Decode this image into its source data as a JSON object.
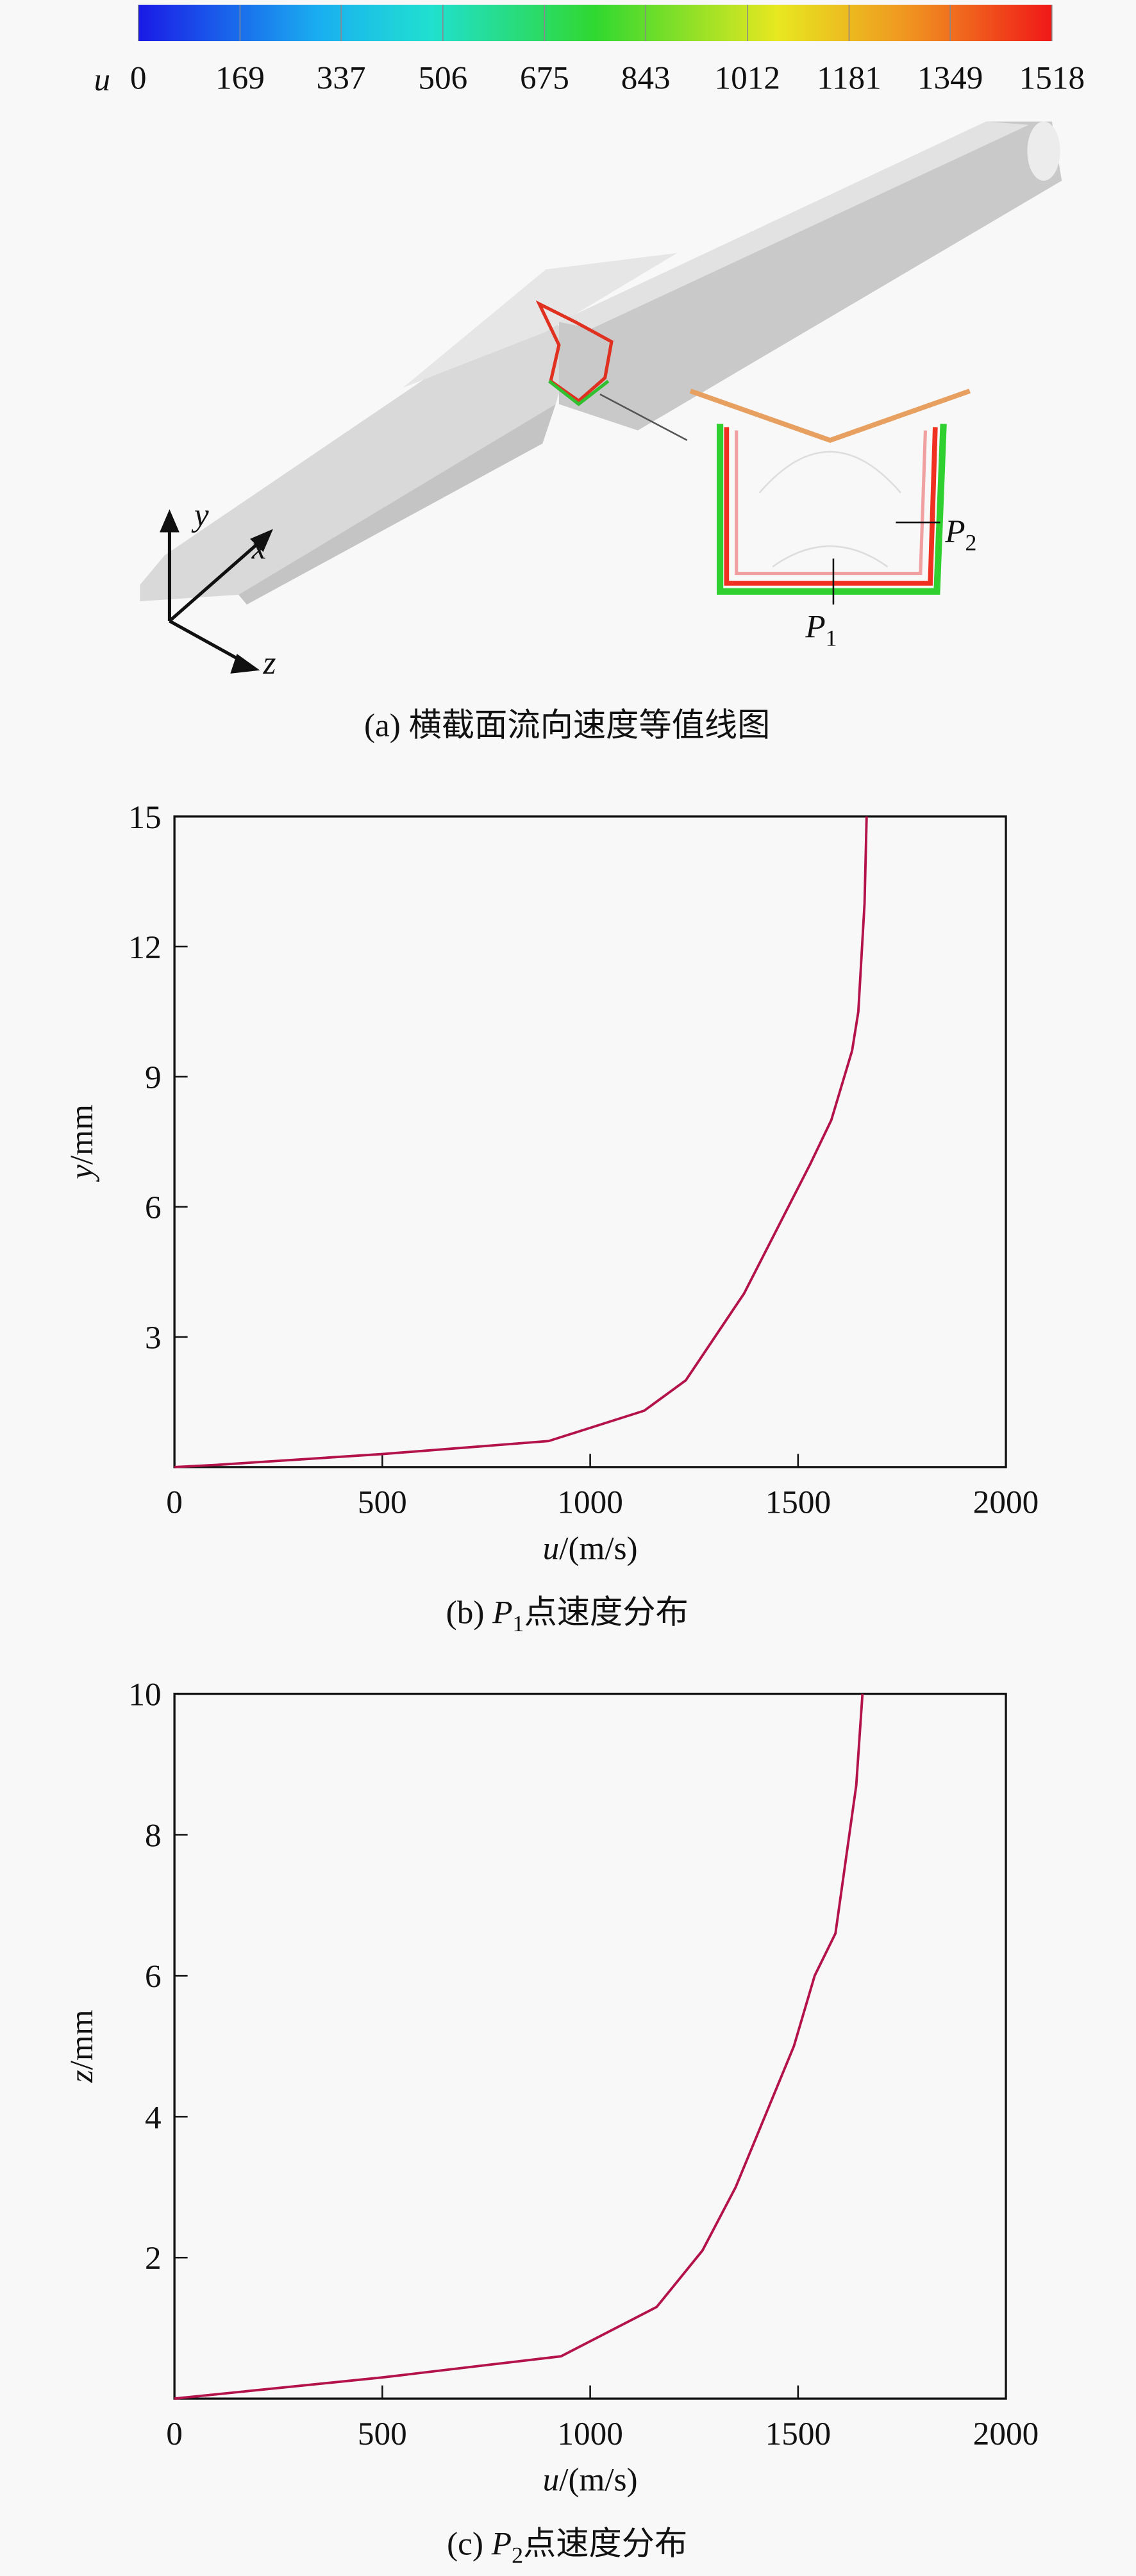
{
  "figure_a": {
    "colorbar": {
      "label": "u",
      "lim": [
        0,
        1518
      ],
      "ticks": [
        0,
        169,
        337,
        506,
        675,
        843,
        1012,
        1181,
        1349,
        1518
      ]
    },
    "axis_labels": [
      "y",
      "x",
      "z"
    ],
    "points": [
      {
        "var": "P",
        "sub": "2"
      },
      {
        "var": "P",
        "sub": "1"
      }
    ],
    "caption": "(a) 横截面流向速度等值线图"
  },
  "chart_data": [
    {
      "type": "line",
      "caption": {
        "prefix": "(b) ",
        "var": "P",
        "sub": "1",
        "suffix": "点速度分布"
      },
      "x_label": {
        "var": "u",
        "unit": "/(m/s)"
      },
      "y_label": {
        "var": "y",
        "unit": "/mm"
      },
      "x": [
        0,
        100,
        500,
        900,
        1130,
        1230,
        1300,
        1370,
        1450,
        1530,
        1580,
        1630,
        1645,
        1660,
        1665
      ],
      "series": [
        {
          "color": "#b3124a",
          "values": [
            0,
            0.05,
            0.3,
            0.6,
            1.3,
            2.0,
            3.0,
            4.0,
            5.5,
            7.0,
            8.0,
            9.6,
            10.5,
            13,
            15
          ]
        }
      ],
      "xlim": [
        0,
        2000
      ],
      "xticks": [
        0,
        500,
        1000,
        1500,
        2000
      ],
      "ylim": [
        0,
        15
      ],
      "yticks": [
        3,
        6,
        9,
        12,
        15
      ]
    },
    {
      "type": "line",
      "caption": {
        "prefix": "(c) ",
        "var": "P",
        "sub": "2",
        "suffix": "点速度分布"
      },
      "x_label": {
        "var": "u",
        "unit": "/(m/s)"
      },
      "y_label": {
        "var": "z",
        "unit": "/mm"
      },
      "x": [
        0,
        500,
        930,
        1160,
        1270,
        1350,
        1420,
        1490,
        1540,
        1590,
        1640,
        1655
      ],
      "series": [
        {
          "color": "#b3124a",
          "values": [
            0,
            0.3,
            0.6,
            1.3,
            2.1,
            3.0,
            4.0,
            5.0,
            6.0,
            6.6,
            8.7,
            10
          ]
        }
      ],
      "xlim": [
        0,
        2000
      ],
      "xticks": [
        0,
        500,
        1000,
        1500,
        2000
      ],
      "ylim": [
        0,
        10
      ],
      "yticks": [
        2,
        4,
        6,
        8,
        10
      ]
    }
  ]
}
